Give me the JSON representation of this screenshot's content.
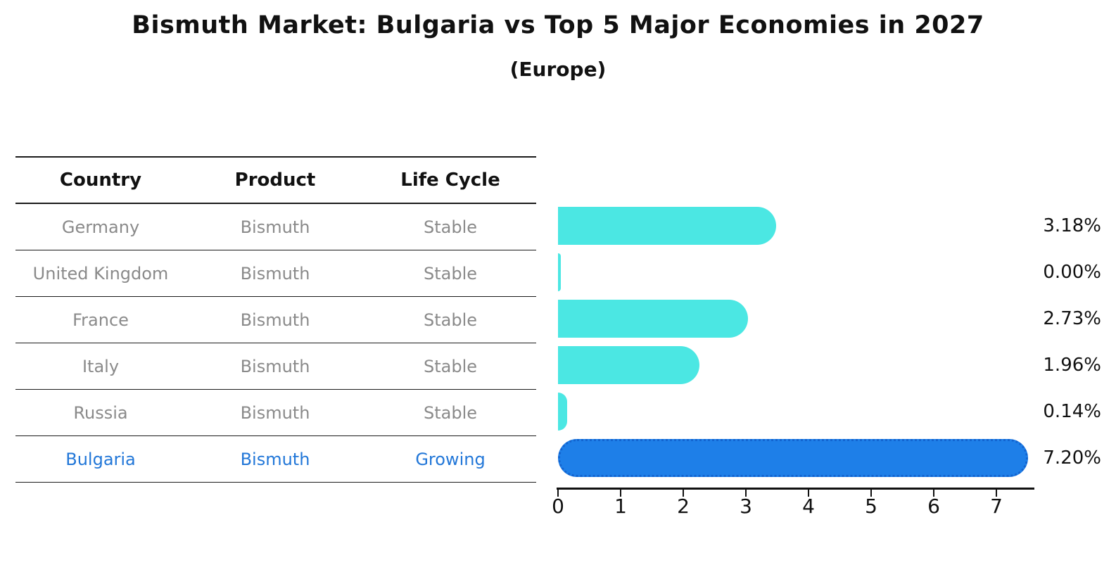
{
  "title": "Bismuth Market: Bulgaria vs Top 5 Major Economies in 2027",
  "subtitle": "(Europe)",
  "table": {
    "headers": [
      "Country",
      "Product",
      "Life Cycle"
    ],
    "rows": [
      {
        "country": "Germany",
        "product": "Bismuth",
        "life_cycle": "Stable",
        "highlighted": false
      },
      {
        "country": "United Kingdom",
        "product": "Bismuth",
        "life_cycle": "Stable",
        "highlighted": false
      },
      {
        "country": "France",
        "product": "Bismuth",
        "life_cycle": "Stable",
        "highlighted": false
      },
      {
        "country": "Italy",
        "product": "Bismuth",
        "life_cycle": "Stable",
        "highlighted": false
      },
      {
        "country": "Russia",
        "product": "Bismuth",
        "life_cycle": "Stable",
        "highlighted": false
      },
      {
        "country": "Bulgaria",
        "product": "Bismuth",
        "life_cycle": "Growing",
        "highlighted": true
      }
    ]
  },
  "chart_data": {
    "type": "bar",
    "orientation": "horizontal",
    "title": "Bismuth Market: Bulgaria vs Top 5 Major Economies in 2027",
    "subtitle": "(Europe)",
    "categories": [
      "Germany",
      "United Kingdom",
      "France",
      "Italy",
      "Russia",
      "Bulgaria"
    ],
    "values": [
      3.18,
      0.0,
      2.73,
      1.96,
      0.14,
      7.2
    ],
    "value_labels": [
      "3.18%",
      "0.00%",
      "2.73%",
      "1.96%",
      "0.14%",
      "7.20%"
    ],
    "xlabel": "",
    "ylabel": "",
    "xlim": [
      0,
      7.6
    ],
    "x_ticks": [
      0,
      1,
      2,
      3,
      4,
      5,
      6,
      7
    ],
    "grid": false,
    "legend": "none",
    "highlight_index": 5,
    "colors": {
      "default_bar": "#4be7e3",
      "highlight_bar": "#1e7fe8",
      "highlight_bar_border": "#1263cf",
      "highlight_text": "#2277d8",
      "row_text": "#8a8a8a",
      "text": "#111111"
    }
  }
}
